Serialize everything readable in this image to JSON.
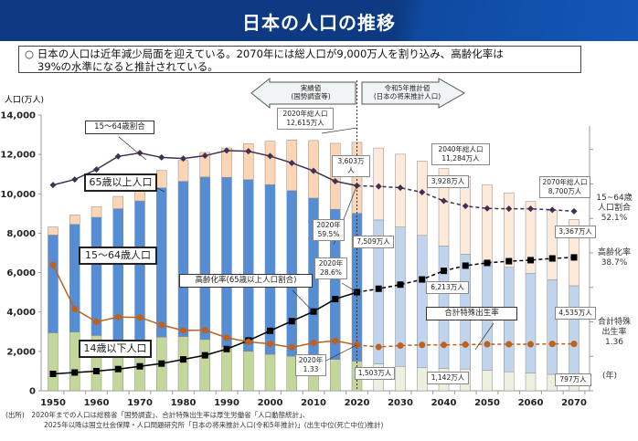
{
  "title": "日本の人口の推移",
  "summary": {
    "line1": "○ 日本の人口は近年減少局面を迎えている。2070年には総人口が9,000万人を割り込み、高齢化率は",
    "line2": "39%の水準になると推計されている。"
  },
  "colors": {
    "header": "#0d3a82",
    "age65_actual": "#fbd5b5",
    "age65_proj": "#fdeadb",
    "age15_64_actual": "#558ed5",
    "age15_64_proj": "#c0d4ee",
    "age0_14_actual": "#c4d79b",
    "age0_14_proj": "#ebf1de",
    "aging_rate_line": "#000000",
    "working_share_line": "#403152",
    "tfr_line": "#c0601a"
  },
  "chart_data": {
    "type": "bar+line",
    "ylabel": "人口(万人)",
    "xlabel_unit": "(年)",
    "ylim": [
      0,
      14000
    ],
    "yticks": [
      "0",
      "2,000",
      "4,000",
      "6,000",
      "8,000",
      "10,000",
      "12,000",
      "14,000"
    ],
    "ytick_values": [
      0,
      2000,
      4000,
      6000,
      8000,
      10000,
      12000,
      14000
    ],
    "xticks": [
      "1950",
      "1960",
      "1970",
      "1980",
      "1990",
      "2000",
      "2010",
      "2020",
      "2030",
      "2040",
      "2050",
      "2060",
      "2070"
    ],
    "years": [
      1950,
      1955,
      1960,
      1965,
      1970,
      1975,
      1980,
      1985,
      1990,
      1995,
      2000,
      2005,
      2010,
      2015,
      2020,
      2025,
      2030,
      2035,
      2040,
      2045,
      2050,
      2055,
      2060,
      2065,
      2070
    ],
    "projection_from": 2025,
    "series": [
      {
        "name": "14歳以下人口",
        "values": [
          2943,
          2980,
          2807,
          2553,
          2482,
          2722,
          2751,
          2603,
          2249,
          2001,
          1847,
          1752,
          1680,
          1589,
          1503,
          1363,
          1240,
          1169,
          1142,
          1103,
          1041,
          966,
          893,
          836,
          797
        ]
      },
      {
        "name": "15～64歳人口",
        "values": [
          4966,
          5473,
          6000,
          6693,
          7157,
          7581,
          7883,
          8251,
          8590,
          8716,
          8622,
          8409,
          8103,
          7629,
          7509,
          7310,
          7076,
          6722,
          6213,
          5832,
          5540,
          5307,
          5078,
          4809,
          4535
        ]
      },
      {
        "name": "65歳以上人口",
        "values": [
          411,
          475,
          535,
          624,
          733,
          887,
          1065,
          1247,
          1489,
          1826,
          2204,
          2576,
          2925,
          3347,
          3603,
          3653,
          3696,
          3773,
          3928,
          3945,
          3888,
          3778,
          3644,
          3513,
          3367
        ]
      },
      {
        "name": "15～64歳割合",
        "unit": "%",
        "values": [
          59.7,
          61.3,
          64.2,
          68.0,
          69.0,
          67.7,
          67.4,
          68.2,
          69.7,
          69.5,
          68.1,
          66.1,
          63.8,
          60.8,
          59.5,
          59.3,
          58.9,
          57.6,
          55.1,
          53.6,
          52.9,
          52.8,
          52.8,
          52.5,
          52.1
        ]
      },
      {
        "name": "高齢化率(65歳以上人口割合)",
        "unit": "%",
        "values": [
          4.9,
          5.3,
          5.7,
          6.3,
          7.1,
          7.9,
          9.1,
          10.3,
          12.1,
          14.6,
          17.4,
          20.2,
          23.0,
          26.6,
          28.6,
          29.6,
          30.8,
          32.3,
          34.8,
          36.3,
          37.1,
          37.6,
          37.9,
          38.4,
          38.7
        ]
      },
      {
        "name": "合計特殊出生率",
        "values": [
          3.65,
          2.37,
          2.0,
          2.14,
          2.13,
          1.91,
          1.75,
          1.76,
          1.54,
          1.42,
          1.36,
          1.26,
          1.39,
          1.45,
          1.33,
          1.27,
          1.31,
          1.33,
          1.33,
          1.34,
          1.35,
          1.35,
          1.35,
          1.36,
          1.36
        ]
      }
    ],
    "legend_labels": {
      "working_share": "15～64歳割合",
      "age65": "65歳以上人口",
      "age15_64": "15～64歳人口",
      "age0_14": "14歳以下人口",
      "aging": "高齢化率(65歳以上人口割合)",
      "tfr": "合計特殊出生率"
    },
    "periods": {
      "actual": "実績値\n(国勢調査等)",
      "projection": "令和5年推計値\n(日本の将来推計人口)"
    },
    "annotations": {
      "total2020": "2020年総人口\n12,615万人",
      "age65_2020": "3,603万人",
      "share2020": "2020年\n59.5%",
      "w2020": "7,509万人",
      "aging2020": "2020年\n28.6%",
      "tfr2020": "2020年\n1.33",
      "child2020": "1,503万人",
      "total2040": "2040年総人口\n11,284万人",
      "age65_2040": "3,928万人",
      "w2040": "6,213万人",
      "child2040": "1,142万人",
      "total2070": "2070年総人口\n8,700万人",
      "age65_2070": "3,367万人",
      "w2070": "4,535万人",
      "child2070": "797万人",
      "right_share": "15~64歳\n人口割合\n52.1%",
      "right_aging": "高齢化率\n38.7%",
      "right_tfr": "合計特殊\n出生率\n1.36"
    }
  },
  "source": {
    "line1": "(出所)　2020年までの人口は総務省「国勢調査」、合計特殊出生率は厚生労働省「人口動態統計」、",
    "line2": "2025年以降は国立社会保障・人口問題研究所「日本の将来推計人口(令和5年推計)」(出生中位(死亡中位)推計)"
  }
}
